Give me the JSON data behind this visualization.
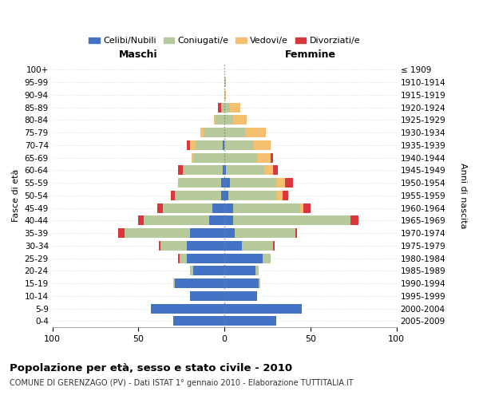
{
  "age_groups": [
    "100+",
    "95-99",
    "90-94",
    "85-89",
    "80-84",
    "75-79",
    "70-74",
    "65-69",
    "60-64",
    "55-59",
    "50-54",
    "45-49",
    "40-44",
    "35-39",
    "30-34",
    "25-29",
    "20-24",
    "15-19",
    "10-14",
    "5-9",
    "0-4"
  ],
  "birth_years": [
    "≤ 1909",
    "1910-1914",
    "1915-1919",
    "1920-1924",
    "1925-1929",
    "1930-1934",
    "1935-1939",
    "1940-1944",
    "1945-1949",
    "1950-1954",
    "1955-1959",
    "1960-1964",
    "1965-1969",
    "1970-1974",
    "1975-1979",
    "1980-1984",
    "1985-1989",
    "1990-1994",
    "1995-1999",
    "2000-2004",
    "2005-2009"
  ],
  "male": {
    "celibi": [
      0,
      0,
      0,
      0,
      0,
      0,
      1,
      0,
      1,
      2,
      2,
      7,
      9,
      20,
      22,
      22,
      18,
      29,
      20,
      43,
      30
    ],
    "coniugati": [
      0,
      0,
      0,
      2,
      5,
      12,
      16,
      18,
      23,
      25,
      27,
      29,
      38,
      38,
      15,
      4,
      2,
      1,
      0,
      0,
      0
    ],
    "vedovi": [
      0,
      0,
      0,
      0,
      1,
      2,
      3,
      1,
      0,
      0,
      0,
      0,
      0,
      0,
      0,
      0,
      0,
      0,
      0,
      0,
      0
    ],
    "divorziati": [
      0,
      0,
      0,
      2,
      0,
      0,
      2,
      0,
      3,
      0,
      2,
      3,
      3,
      4,
      1,
      1,
      0,
      0,
      0,
      0,
      0
    ]
  },
  "female": {
    "nubili": [
      0,
      0,
      0,
      0,
      0,
      0,
      0,
      0,
      1,
      3,
      2,
      5,
      5,
      6,
      10,
      22,
      18,
      20,
      19,
      45,
      30
    ],
    "coniugate": [
      0,
      1,
      0,
      3,
      5,
      12,
      17,
      19,
      22,
      27,
      28,
      39,
      68,
      35,
      18,
      5,
      2,
      1,
      0,
      0,
      0
    ],
    "vedove": [
      0,
      0,
      1,
      6,
      8,
      12,
      10,
      8,
      5,
      5,
      4,
      2,
      0,
      0,
      0,
      0,
      0,
      0,
      0,
      0,
      0
    ],
    "divorziate": [
      0,
      0,
      0,
      0,
      0,
      0,
      0,
      1,
      3,
      5,
      3,
      4,
      5,
      1,
      1,
      0,
      0,
      0,
      0,
      0,
      0
    ]
  },
  "color_celibi": "#4472c4",
  "color_coniugati": "#b5c99a",
  "color_vedovi": "#f4c06f",
  "color_divorziati": "#d9363e",
  "title": "Popolazione per età, sesso e stato civile - 2010",
  "subtitle": "COMUNE DI GERENZAGO (PV) - Dati ISTAT 1° gennaio 2010 - Elaborazione TUTTITALIA.IT",
  "xlabel_left": "Maschi",
  "xlabel_right": "Femmine",
  "ylabel_left": "Fasce di età",
  "ylabel_right": "Anni di nascita",
  "xlim": 100
}
